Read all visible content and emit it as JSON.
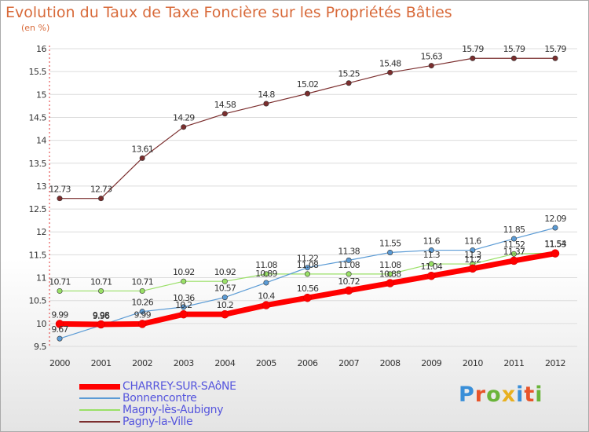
{
  "title": "Evolution du Taux de Taxe Foncière sur les Propriétés Bâties",
  "subtitle": "(en %)",
  "logo": "Proxiti",
  "chart_data": {
    "type": "line",
    "x": [
      "2000",
      "2001",
      "2002",
      "2003",
      "2004",
      "2005",
      "2006",
      "2007",
      "2008",
      "2009",
      "2010",
      "2011",
      "2012"
    ],
    "ylim": [
      9.5,
      16
    ],
    "yticks": [
      "9.5",
      "10",
      "10.5",
      "11",
      "11.5",
      "12",
      "12.5",
      "13",
      "13.5",
      "14",
      "14.5",
      "15",
      "15.5",
      "16"
    ],
    "series": [
      {
        "name": "CHARREY-SUR-SAôNE",
        "color": "#ff0000",
        "values": [
          9.99,
          9.98,
          9.99,
          10.2,
          10.2,
          10.4,
          10.56,
          10.72,
          10.88,
          11.04,
          11.2,
          11.37,
          11.53
        ],
        "labels": [
          "9.99",
          "9.98",
          "9.99",
          "10.2",
          "10.2",
          "10.4",
          "10.56",
          "10.72",
          "10.88",
          "11.04",
          "11.2",
          "11.37",
          "11.53"
        ]
      },
      {
        "name": "Bonnencontre",
        "color": "#5b9bd5",
        "values": [
          9.67,
          9.96,
          10.26,
          10.36,
          10.57,
          10.89,
          11.22,
          11.38,
          11.55,
          11.6,
          11.6,
          11.85,
          12.09
        ],
        "labels": [
          "9.67",
          "9.96",
          "10.26",
          "10.36",
          "10.57",
          "10.89",
          "11.22",
          "11.38",
          "11.55",
          "11.6",
          "11.6",
          "11.85",
          "12.09"
        ]
      },
      {
        "name": "Magny-lès-Aubigny",
        "color": "#99e066",
        "values": [
          10.71,
          10.71,
          10.71,
          10.92,
          10.92,
          11.08,
          11.08,
          11.08,
          11.08,
          11.3,
          11.3,
          11.52,
          11.54
        ],
        "labels": [
          "10.71",
          "10.71",
          "10.71",
          "10.92",
          "10.92",
          "11.08",
          "11.08",
          "11.08",
          "11.08",
          "11.3",
          "11.3",
          "11.52",
          "11.54"
        ]
      },
      {
        "name": "Pagny-la-Ville",
        "color": "#7b2e2e",
        "values": [
          12.73,
          12.73,
          13.61,
          14.29,
          14.58,
          14.8,
          15.02,
          15.25,
          15.48,
          15.63,
          15.79,
          15.79,
          15.79
        ],
        "labels": [
          "12.73",
          "12.73",
          "13.61",
          "14.29",
          "14.58",
          "14.8",
          "15.02",
          "15.25",
          "15.48",
          "15.63",
          "15.79",
          "15.79",
          "15.79"
        ]
      }
    ]
  }
}
